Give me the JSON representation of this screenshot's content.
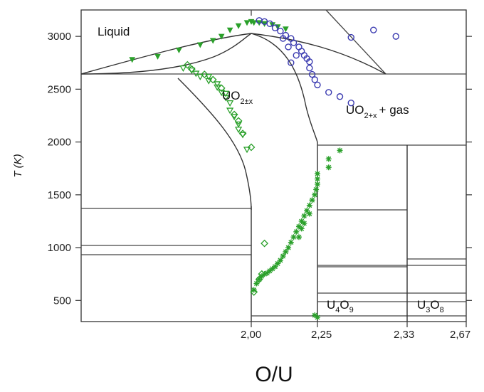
{
  "chart_data": {
    "type": "scatter",
    "title": "",
    "xlabel": "O/U",
    "ylabel": "T (K)",
    "ylim": [
      300,
      3250
    ],
    "y_ticks": [
      500,
      1000,
      1500,
      2000,
      2500,
      3000
    ],
    "x_tick_labels": [
      "2,00",
      "2,25",
      "2,33",
      "2,67"
    ],
    "grid": false,
    "regions": [
      {
        "name": "liquid",
        "text": "Liquid"
      },
      {
        "name": "uo2x",
        "base": "UO",
        "sub": "2±x",
        "suffix": ""
      },
      {
        "name": "uo2gas",
        "base": "UO",
        "sub": "2+x",
        "suffix": "+ gas"
      },
      {
        "name": "u4o9",
        "base": "U",
        "sub1": "4",
        "mid": "O",
        "sub2": "9"
      },
      {
        "name": "u3o8",
        "base": "U",
        "sub1": "3",
        "mid": "O",
        "sub2": "8"
      }
    ],
    "series": [
      {
        "color": "#2aa02a",
        "marker": "tri_down",
        "points": [
          [
            1.72,
            2780
          ],
          [
            1.78,
            2810
          ],
          [
            1.83,
            2870
          ],
          [
            1.88,
            2920
          ],
          [
            1.91,
            2960
          ],
          [
            1.93,
            3000
          ],
          [
            1.95,
            3060
          ],
          [
            1.97,
            3100
          ],
          [
            1.99,
            3130
          ],
          [
            2.0,
            3140
          ],
          [
            2.01,
            3130
          ],
          [
            2.03,
            3130
          ],
          [
            2.05,
            3120
          ],
          [
            2.08,
            3110
          ],
          [
            2.1,
            3090
          ],
          [
            2.13,
            3070
          ]
        ]
      },
      {
        "color": "#2aa02a",
        "marker": "open_tri",
        "points": [
          [
            1.84,
            2700
          ],
          [
            1.86,
            2680
          ],
          [
            1.87,
            2650
          ],
          [
            1.88,
            2620
          ],
          [
            1.9,
            2580
          ],
          [
            1.92,
            2520
          ],
          [
            1.93,
            2470
          ],
          [
            1.94,
            2420
          ],
          [
            1.95,
            2370
          ],
          [
            1.95,
            2300
          ],
          [
            1.96,
            2240
          ],
          [
            1.97,
            2170
          ],
          [
            1.97,
            2120
          ],
          [
            1.98,
            2070
          ],
          [
            1.99,
            1930
          ],
          [
            1.9,
            2620
          ],
          [
            1.92,
            2550
          ],
          [
            1.94,
            2460
          ]
        ]
      },
      {
        "color": "#2aa02a",
        "marker": "open_diamond",
        "points": [
          [
            1.85,
            2730
          ],
          [
            1.86,
            2690
          ],
          [
            1.89,
            2640
          ],
          [
            1.91,
            2590
          ],
          [
            1.93,
            2510
          ],
          [
            1.96,
            2260
          ],
          [
            1.97,
            2200
          ],
          [
            1.98,
            2080
          ],
          [
            2.0,
            1950
          ],
          [
            2.05,
            1040
          ],
          [
            2.01,
            580
          ],
          [
            2.03,
            700
          ],
          [
            2.04,
            750
          ]
        ]
      },
      {
        "color": "#2aa02a",
        "marker": "star",
        "points": [
          [
            2.01,
            600
          ],
          [
            2.02,
            660
          ],
          [
            2.03,
            700
          ],
          [
            2.04,
            730
          ],
          [
            2.05,
            750
          ],
          [
            2.06,
            760
          ],
          [
            2.07,
            780
          ],
          [
            2.08,
            800
          ],
          [
            2.09,
            820
          ],
          [
            2.1,
            850
          ],
          [
            2.11,
            880
          ],
          [
            2.12,
            920
          ],
          [
            2.13,
            960
          ],
          [
            2.14,
            1000
          ],
          [
            2.15,
            1050
          ],
          [
            2.16,
            1100
          ],
          [
            2.17,
            1150
          ],
          [
            2.18,
            1200
          ],
          [
            2.19,
            1250
          ],
          [
            2.2,
            1300
          ],
          [
            2.21,
            1350
          ],
          [
            2.22,
            1400
          ],
          [
            2.23,
            1450
          ],
          [
            2.24,
            1500
          ],
          [
            2.245,
            1550
          ],
          [
            2.25,
            1600
          ],
          [
            2.25,
            1650
          ],
          [
            2.25,
            1700
          ],
          [
            2.26,
            1760
          ],
          [
            2.26,
            1840
          ],
          [
            2.27,
            1920
          ],
          [
            2.24,
            360
          ],
          [
            2.25,
            340
          ],
          [
            2.2,
            1230
          ],
          [
            2.19,
            1180
          ],
          [
            2.22,
            1320
          ],
          [
            2.18,
            1100
          ]
        ]
      },
      {
        "color": "#3a3ab0",
        "marker": "open_circle",
        "points": [
          [
            2.03,
            3150
          ],
          [
            2.05,
            3140
          ],
          [
            2.07,
            3120
          ],
          [
            2.09,
            3080
          ],
          [
            2.11,
            3050
          ],
          [
            2.13,
            3010
          ],
          [
            2.15,
            2980
          ],
          [
            2.16,
            2940
          ],
          [
            2.18,
            2900
          ],
          [
            2.19,
            2860
          ],
          [
            2.2,
            2820
          ],
          [
            2.21,
            2790
          ],
          [
            2.22,
            2760
          ],
          [
            2.22,
            2700
          ],
          [
            2.23,
            2640
          ],
          [
            2.24,
            2590
          ],
          [
            2.25,
            2540
          ],
          [
            2.26,
            2470
          ],
          [
            2.27,
            2430
          ],
          [
            2.28,
            2370
          ],
          [
            2.12,
            2980
          ],
          [
            2.14,
            2900
          ],
          [
            2.17,
            2820
          ],
          [
            2.15,
            2750
          ],
          [
            2.3,
            3060
          ],
          [
            2.32,
            3000
          ],
          [
            2.28,
            2990
          ]
        ]
      }
    ]
  }
}
